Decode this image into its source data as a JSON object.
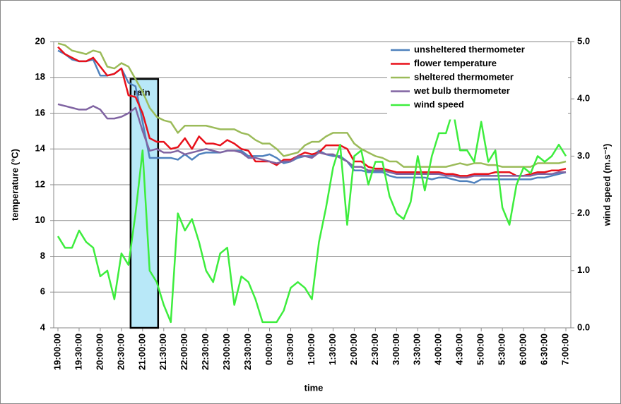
{
  "chart_data": {
    "type": "line",
    "xlabel": "time",
    "ylabel": "temperature (°C)",
    "y2label": "wind speed (m.s⁻¹)",
    "annotation": "rain",
    "categories": [
      "19:00:00",
      null,
      null,
      "19:30:00",
      null,
      null,
      "20:00:00",
      null,
      null,
      "20:30:00",
      null,
      null,
      "21:00:00",
      null,
      null,
      "21:30:00",
      null,
      null,
      "22:00:00",
      null,
      null,
      "22:30:00",
      null,
      null,
      "23:00:00",
      null,
      null,
      "23:30:00",
      null,
      null,
      "0:00:00",
      null,
      null,
      "0:30:00",
      null,
      null,
      "1:00:00",
      null,
      null,
      "1:30:00",
      null,
      null,
      "2:00:00",
      null,
      null,
      "2:30:00",
      null,
      null,
      "3:00:00",
      null,
      null,
      "3:30:00",
      null,
      null,
      "4:00:00",
      null,
      null,
      "4:30:00",
      null,
      null,
      "5:00:00",
      null,
      null,
      "5:30:00",
      null,
      null,
      "6:00:00",
      null,
      null,
      "6:30:00",
      null,
      null,
      "7:00:00"
    ],
    "ylim": [
      4,
      20
    ],
    "yticks": [
      4,
      6,
      8,
      10,
      12,
      14,
      16,
      18,
      20
    ],
    "y2lim": [
      0,
      5
    ],
    "y2ticks": [
      {
        "value": 0,
        "label": "0.0"
      },
      {
        "value": 1,
        "label": "1.0"
      },
      {
        "value": 2,
        "label": "2.0"
      },
      {
        "value": 3,
        "label": "3.0"
      },
      {
        "value": 4,
        "label": "4.0"
      },
      {
        "value": 5,
        "label": "5.0"
      }
    ],
    "grid": true,
    "legend": "upper right",
    "series": [
      {
        "name": "unsheltered thermometer",
        "color": "#4f81bd",
        "values": [
          19.5,
          19.3,
          19.0,
          18.9,
          18.9,
          19.0,
          18.1,
          18.1,
          18.2,
          18.5,
          17.7,
          17.5,
          15.5,
          13.5,
          13.5,
          13.5,
          13.5,
          13.4,
          13.7,
          13.4,
          13.7,
          13.8,
          13.8,
          13.8,
          13.9,
          13.9,
          13.9,
          13.6,
          13.6,
          13.6,
          13.7,
          13.5,
          13.2,
          13.3,
          13.5,
          13.6,
          13.6,
          13.9,
          13.7,
          13.6,
          13.6,
          13.3,
          12.8,
          12.8,
          12.7,
          12.7,
          12.7,
          12.5,
          12.4,
          12.4,
          12.4,
          12.4,
          12.4,
          12.3,
          12.4,
          12.4,
          12.3,
          12.2,
          12.2,
          12.1,
          12.3,
          12.3,
          12.3,
          12.3,
          12.3,
          12.3,
          12.3,
          12.3,
          12.4,
          12.4,
          12.5,
          12.6,
          12.7
        ]
      },
      {
        "name": "flower temperature",
        "color": "#e8101a",
        "values": [
          19.7,
          19.3,
          19.1,
          18.9,
          18.9,
          19.1,
          18.6,
          18.1,
          18.2,
          18.5,
          17.0,
          16.9,
          16.0,
          14.6,
          14.4,
          14.4,
          14.0,
          14.1,
          14.6,
          14.0,
          14.7,
          14.3,
          14.3,
          14.2,
          14.5,
          14.3,
          14.0,
          13.9,
          13.3,
          13.3,
          13.3,
          13.1,
          13.4,
          13.4,
          13.6,
          13.8,
          13.7,
          13.8,
          14.2,
          14.2,
          14.2,
          14.0,
          13.3,
          13.3,
          13.0,
          12.9,
          12.9,
          12.8,
          12.7,
          12.7,
          12.7,
          12.7,
          12.7,
          12.7,
          12.7,
          12.6,
          12.6,
          12.5,
          12.5,
          12.6,
          12.6,
          12.6,
          12.7,
          12.7,
          12.7,
          12.5,
          12.5,
          12.6,
          12.7,
          12.7,
          12.8,
          12.8,
          12.9
        ]
      },
      {
        "name": "sheltered thermometer",
        "color": "#9bbb59",
        "values": [
          19.9,
          19.8,
          19.5,
          19.4,
          19.3,
          19.5,
          19.4,
          18.6,
          18.5,
          18.8,
          18.6,
          17.9,
          17.2,
          16.3,
          15.8,
          15.6,
          15.5,
          14.9,
          15.3,
          15.3,
          15.3,
          15.3,
          15.2,
          15.1,
          15.1,
          15.1,
          14.9,
          14.8,
          14.5,
          14.3,
          14.3,
          14.0,
          13.6,
          13.7,
          13.8,
          14.2,
          14.4,
          14.4,
          14.7,
          14.9,
          14.9,
          14.9,
          14.3,
          14.0,
          13.8,
          13.6,
          13.5,
          13.3,
          13.3,
          13.0,
          13.0,
          13.0,
          13.0,
          13.0,
          13.0,
          13.0,
          13.1,
          13.2,
          13.1,
          13.2,
          13.2,
          13.1,
          13.1,
          13.0,
          13.0,
          13.0,
          13.0,
          13.0,
          13.2,
          13.2,
          13.2,
          13.2,
          13.3
        ]
      },
      {
        "name": "wet bulb thermometer",
        "color": "#8064a2",
        "values": [
          16.5,
          16.4,
          16.3,
          16.2,
          16.2,
          16.4,
          16.2,
          15.7,
          15.7,
          15.8,
          16.0,
          16.3,
          15.0,
          13.9,
          14.0,
          13.8,
          13.8,
          13.9,
          13.7,
          13.8,
          13.9,
          14.0,
          13.9,
          13.8,
          13.9,
          13.9,
          13.8,
          13.5,
          13.5,
          13.4,
          13.3,
          13.2,
          13.3,
          13.3,
          13.6,
          13.6,
          13.5,
          13.8,
          13.7,
          13.7,
          13.5,
          13.3,
          13.0,
          13.0,
          12.8,
          12.8,
          12.8,
          12.7,
          12.6,
          12.6,
          12.6,
          12.6,
          12.6,
          12.6,
          12.6,
          12.5,
          12.5,
          12.4,
          12.4,
          12.5,
          12.5,
          12.5,
          12.5,
          12.5,
          12.5,
          12.5,
          12.5,
          12.5,
          12.6,
          12.6,
          12.6,
          12.7,
          12.7
        ]
      },
      {
        "name": "wind speed",
        "color": "#3ded3d",
        "axis": "y2",
        "values": [
          1.6,
          1.4,
          1.4,
          1.7,
          1.5,
          1.4,
          0.9,
          1.0,
          0.5,
          1.3,
          1.1,
          2.0,
          3.1,
          1.0,
          0.8,
          0.4,
          0.1,
          2.0,
          1.7,
          1.9,
          1.5,
          1.0,
          0.8,
          1.3,
          1.4,
          0.4,
          0.9,
          0.8,
          0.5,
          0.1,
          0.1,
          0.1,
          0.3,
          0.7,
          0.8,
          0.7,
          0.5,
          1.5,
          2.1,
          2.8,
          3.2,
          1.8,
          3.0,
          3.1,
          2.5,
          2.9,
          2.9,
          2.3,
          2.0,
          1.9,
          2.2,
          3.0,
          2.4,
          3.0,
          3.4,
          3.4,
          3.8,
          3.1,
          3.1,
          2.9,
          3.6,
          2.9,
          3.1,
          2.1,
          1.8,
          2.5,
          2.8,
          2.7,
          3.0,
          2.9,
          3.0,
          3.2,
          3.0
        ]
      }
    ]
  }
}
